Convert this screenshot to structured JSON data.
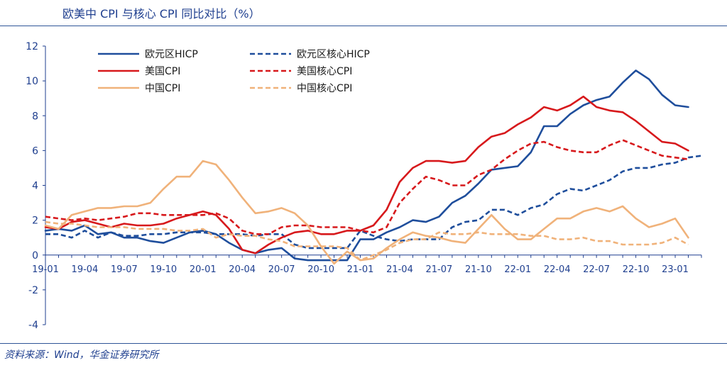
{
  "header": {
    "title": "欧美中 CPI 与核心 CPI 同比对比（%）"
  },
  "footer": {
    "source": "资料来源：Wind，华金证券研究所"
  },
  "chart_data": {
    "type": "line",
    "title": "欧美中 CPI 与核心 CPI 同比对比（%）",
    "xlabel": "",
    "ylabel": "",
    "ylim": [
      -4,
      12
    ],
    "yticks": [
      -4,
      -2,
      0,
      2,
      4,
      6,
      8,
      10,
      12
    ],
    "grid": false,
    "legend_position": "top-left",
    "x": [
      "19-01",
      "19-02",
      "19-03",
      "19-04",
      "19-05",
      "19-06",
      "19-07",
      "19-08",
      "19-09",
      "19-10",
      "19-11",
      "19-12",
      "20-01",
      "20-02",
      "20-03",
      "20-04",
      "20-05",
      "20-06",
      "20-07",
      "20-08",
      "20-09",
      "20-10",
      "20-11",
      "20-12",
      "21-01",
      "21-02",
      "21-03",
      "21-04",
      "21-05",
      "21-06",
      "21-07",
      "21-08",
      "21-09",
      "21-10",
      "21-11",
      "21-12",
      "22-01",
      "22-02",
      "22-03",
      "22-04",
      "22-05",
      "22-06",
      "22-07",
      "22-08",
      "22-09",
      "22-10",
      "22-11",
      "22-12",
      "23-01",
      "23-02",
      "23-03"
    ],
    "xtick_labels": [
      "19-01",
      "19-04",
      "19-07",
      "19-10",
      "20-01",
      "20-04",
      "20-07",
      "20-10",
      "21-01",
      "21-04",
      "21-07",
      "21-10",
      "22-01",
      "22-04",
      "22-07",
      "22-10",
      "23-01"
    ],
    "series": [
      {
        "name": "欧元区HICP",
        "color": "#1f4e9c",
        "dash": false,
        "values": [
          1.4,
          1.5,
          1.4,
          1.7,
          1.2,
          1.3,
          1.0,
          1.0,
          0.8,
          0.7,
          1.0,
          1.3,
          1.4,
          1.2,
          0.7,
          0.3,
          0.1,
          0.3,
          0.4,
          -0.2,
          -0.3,
          -0.3,
          -0.3,
          -0.3,
          0.9,
          0.9,
          1.3,
          1.6,
          2.0,
          1.9,
          2.2,
          3.0,
          3.4,
          4.1,
          4.9,
          5.0,
          5.1,
          5.9,
          7.4,
          7.4,
          8.1,
          8.6,
          8.9,
          9.1,
          9.9,
          10.6,
          10.1,
          9.2,
          8.6,
          8.5,
          null
        ]
      },
      {
        "name": "欧元区核心HICP",
        "color": "#1f4e9c",
        "dash": true,
        "values": [
          1.2,
          1.2,
          1.0,
          1.4,
          1.0,
          1.3,
          1.1,
          1.1,
          1.2,
          1.2,
          1.3,
          1.3,
          1.3,
          1.2,
          1.2,
          1.2,
          1.1,
          1.2,
          1.2,
          0.6,
          0.4,
          0.4,
          0.4,
          0.4,
          1.4,
          1.1,
          0.9,
          0.8,
          0.9,
          0.9,
          0.9,
          1.6,
          1.9,
          2.0,
          2.6,
          2.6,
          2.3,
          2.7,
          2.9,
          3.5,
          3.8,
          3.7,
          4.0,
          4.3,
          4.8,
          5.0,
          5.0,
          5.2,
          5.3,
          5.6,
          5.7
        ]
      },
      {
        "name": "美国CPI",
        "color": "#d7191c",
        "dash": false,
        "values": [
          1.6,
          1.5,
          1.9,
          2.0,
          1.8,
          1.6,
          1.8,
          1.7,
          1.7,
          1.8,
          2.1,
          2.3,
          2.5,
          2.3,
          1.5,
          0.3,
          0.1,
          0.6,
          1.0,
          1.3,
          1.4,
          1.2,
          1.2,
          1.4,
          1.4,
          1.7,
          2.6,
          4.2,
          5.0,
          5.4,
          5.4,
          5.3,
          5.4,
          6.2,
          6.8,
          7.0,
          7.5,
          7.9,
          8.5,
          8.3,
          8.6,
          9.1,
          8.5,
          8.3,
          8.2,
          7.7,
          7.1,
          6.5,
          6.4,
          6.0,
          null
        ]
      },
      {
        "name": "美国核心CPI",
        "color": "#d7191c",
        "dash": true,
        "values": [
          2.2,
          2.1,
          2.0,
          2.1,
          2.0,
          2.1,
          2.2,
          2.4,
          2.4,
          2.3,
          2.3,
          2.3,
          2.3,
          2.4,
          2.1,
          1.4,
          1.2,
          1.2,
          1.6,
          1.7,
          1.7,
          1.6,
          1.6,
          1.6,
          1.4,
          1.3,
          1.6,
          3.0,
          3.8,
          4.5,
          4.3,
          4.0,
          4.0,
          4.6,
          4.9,
          5.5,
          6.0,
          6.4,
          6.5,
          6.2,
          6.0,
          5.9,
          5.9,
          6.3,
          6.6,
          6.3,
          6.0,
          5.7,
          5.6,
          5.5,
          null
        ]
      },
      {
        "name": "中国CPI",
        "color": "#f0b27a",
        "dash": false,
        "values": [
          1.7,
          1.5,
          2.3,
          2.5,
          2.7,
          2.7,
          2.8,
          2.8,
          3.0,
          3.8,
          4.5,
          4.5,
          5.4,
          5.2,
          4.3,
          3.3,
          2.4,
          2.5,
          2.7,
          2.4,
          1.7,
          0.5,
          -0.5,
          0.2,
          -0.3,
          -0.2,
          0.4,
          0.9,
          1.3,
          1.1,
          1.0,
          0.8,
          0.7,
          1.5,
          2.3,
          1.5,
          0.9,
          0.9,
          1.5,
          2.1,
          2.1,
          2.5,
          2.7,
          2.5,
          2.8,
          2.1,
          1.6,
          1.8,
          2.1,
          1.0,
          null
        ]
      },
      {
        "name": "中国核心CPI",
        "color": "#f0b27a",
        "dash": true,
        "values": [
          1.9,
          1.8,
          1.8,
          1.7,
          1.6,
          1.6,
          1.6,
          1.5,
          1.5,
          1.5,
          1.4,
          1.4,
          1.5,
          1.0,
          1.2,
          1.1,
          1.1,
          0.9,
          0.8,
          0.5,
          0.5,
          0.5,
          0.5,
          0.4,
          -0.3,
          0.0,
          0.3,
          0.7,
          0.9,
          0.9,
          1.3,
          1.2,
          1.2,
          1.3,
          1.2,
          1.2,
          1.2,
          1.1,
          1.1,
          0.9,
          0.9,
          1.0,
          0.8,
          0.8,
          0.6,
          0.6,
          0.6,
          0.7,
          1.0,
          0.6,
          null
        ]
      }
    ]
  }
}
